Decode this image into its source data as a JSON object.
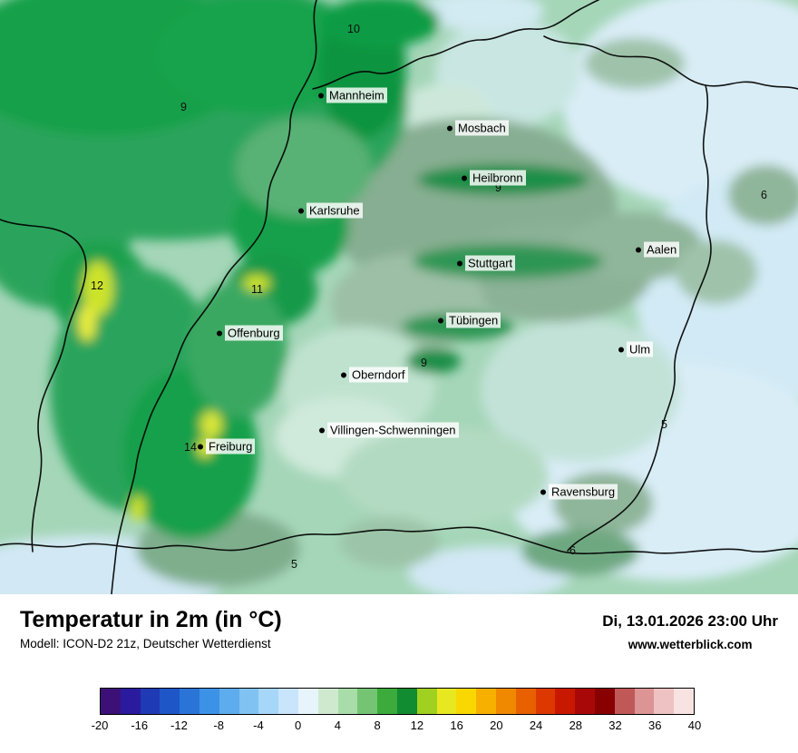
{
  "map": {
    "cities": [
      {
        "name": "Mannheim"
      },
      {
        "name": "Mosbach"
      },
      {
        "name": "Heilbronn"
      },
      {
        "name": "Karlsruhe"
      },
      {
        "name": "Stuttgart"
      },
      {
        "name": "Aalen"
      },
      {
        "name": "Tübingen"
      },
      {
        "name": "Offenburg"
      },
      {
        "name": "Ulm"
      },
      {
        "name": "Oberndorf"
      },
      {
        "name": "Villingen-Schwenningen"
      },
      {
        "name": "Freiburg"
      },
      {
        "name": "Ravensburg"
      }
    ],
    "temp_labels": [
      "10",
      "9",
      "9",
      "6",
      "12",
      "11",
      "9",
      "5",
      "14",
      "5",
      "6"
    ],
    "palette": {
      "pale_blue": "#d9edf6",
      "pale_mint": "#cfe9da",
      "seafoam": "#a5d6b8",
      "gray_green": "#87ae92",
      "green": "#2aa45c",
      "bright_green": "#12a048",
      "dark_green": "#1f8f4a",
      "yellow_green": "#cde32c",
      "yellow": "#e7ec3e",
      "border": "#000000"
    }
  },
  "footer": {
    "title": "Temperatur in 2m (in °C)",
    "datetime": "Di, 13.01.2026 23:00 Uhr",
    "model": "Modell: ICON-D2 21z, Deutscher Wetterdienst",
    "website": "www.wetterblick.com"
  },
  "colorbar": {
    "ticks": [
      "-20",
      "-16",
      "-12",
      "-8",
      "-4",
      "0",
      "4",
      "8",
      "12",
      "16",
      "20",
      "24",
      "28",
      "32",
      "36",
      "40"
    ],
    "colors": [
      "#3d1078",
      "#2a1a9e",
      "#1e3ab4",
      "#1e56c8",
      "#2a74d8",
      "#3c92e6",
      "#5cacee",
      "#80c2f2",
      "#a6d6f8",
      "#c8e5fb",
      "#e8f4fb",
      "#cfe9cf",
      "#a8dca8",
      "#74c474",
      "#3cab3c",
      "#128c30",
      "#a0d020",
      "#e8e820",
      "#f8d800",
      "#f8b000",
      "#f08800",
      "#e86000",
      "#dc3800",
      "#c81800",
      "#a80808",
      "#880000",
      "#c05858",
      "#dc9494",
      "#eec2c2",
      "#f8e2e2"
    ]
  }
}
